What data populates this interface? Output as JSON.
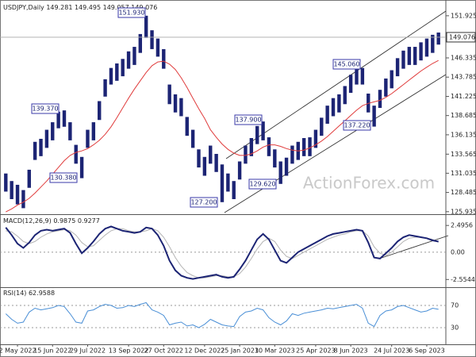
{
  "chart_data": [
    {
      "type": "ohlc",
      "title": "USDJPY,Daily",
      "last_bar": {
        "open": 149.281,
        "high": 149.495,
        "low": 149.057,
        "close": 149.076
      },
      "categories": [
        null,
        null,
        "2 May 2022",
        null,
        null,
        null,
        null,
        null,
        "15 Jun 2022",
        null,
        null,
        null,
        null,
        null,
        "29 Jul 2022",
        null,
        null,
        null,
        null,
        null,
        null,
        "13 Sep 2022",
        null,
        null,
        null,
        null,
        null,
        "27 Oct 2022",
        null,
        null,
        null,
        null,
        null,
        null,
        "12 Dec 2022",
        null,
        null,
        null,
        null,
        null,
        "25 Jan 2023",
        null,
        null,
        null,
        null,
        null,
        "10 Mar 2023",
        null,
        null,
        null,
        null,
        null,
        null,
        "25 Apr 2023",
        null,
        null,
        null,
        null,
        null,
        "8 Jun 2023",
        null,
        null,
        null,
        null,
        null,
        null,
        "24 Jul 2023",
        null,
        null,
        null,
        null,
        null,
        "6 Sep 2023",
        null,
        null
      ],
      "high": [
        131.0,
        130.0,
        129.5,
        128.8,
        131.5,
        135.2,
        135.6,
        136.8,
        137.8,
        139.2,
        139.37,
        137.8,
        134.8,
        133.2,
        136.8,
        137.8,
        140.6,
        143.5,
        145.0,
        145.6,
        146.2,
        147.2,
        147.8,
        149.5,
        151.93,
        150.0,
        148.9,
        147.5,
        142.8,
        141.5,
        141.0,
        138.5,
        136.8,
        134.2,
        133.2,
        134.7,
        133.6,
        132.2,
        131.0,
        130.0,
        132.6,
        134.7,
        135.7,
        137.3,
        137.9,
        135.8,
        134.2,
        132.6,
        133.1,
        134.7,
        135.2,
        135.7,
        135.8,
        136.8,
        138.4,
        140.0,
        141.0,
        141.5,
        142.6,
        144.1,
        145.06,
        145.0,
        141.6,
        140.0,
        142.1,
        143.6,
        144.7,
        146.3,
        147.3,
        147.8,
        147.8,
        148.4,
        148.9,
        149.4,
        149.7
      ],
      "low": [
        128.6,
        127.6,
        126.9,
        126.4,
        129.1,
        132.8,
        133.3,
        134.4,
        135.4,
        137.0,
        137.2,
        135.4,
        132.3,
        130.38,
        134.4,
        135.4,
        138.1,
        141.2,
        142.8,
        143.3,
        143.9,
        144.9,
        145.4,
        147.0,
        149.0,
        147.5,
        146.5,
        144.9,
        140.2,
        139.1,
        138.6,
        136.0,
        134.4,
        131.8,
        130.7,
        132.3,
        131.2,
        127.2,
        128.6,
        127.6,
        130.2,
        132.3,
        133.3,
        134.9,
        135.4,
        133.3,
        131.8,
        129.62,
        130.7,
        132.3,
        132.8,
        133.3,
        133.3,
        134.4,
        136.0,
        137.6,
        138.6,
        139.1,
        140.2,
        141.7,
        142.8,
        142.8,
        139.1,
        137.22,
        139.7,
        141.2,
        142.3,
        143.9,
        144.9,
        145.4,
        145.4,
        146.0,
        146.5,
        147.0,
        148.1
      ],
      "color": "#1c2474",
      "ma": {
        "color": "#e03c3c",
        "values": [
          125.9,
          126.3,
          126.8,
          127.2,
          127.7,
          128.4,
          129.2,
          130.0,
          130.9,
          131.8,
          132.7,
          133.4,
          133.8,
          134.0,
          134.3,
          134.8,
          135.4,
          136.2,
          137.2,
          138.4,
          139.7,
          141.0,
          142.2,
          143.3,
          144.4,
          145.3,
          145.8,
          145.9,
          145.5,
          144.8,
          143.7,
          142.4,
          141.0,
          139.6,
          138.3,
          136.8,
          135.8,
          134.9,
          134.2,
          133.7,
          133.4,
          133.4,
          133.6,
          134.0,
          134.5,
          134.8,
          134.8,
          134.6,
          134.3,
          134.1,
          134.0,
          134.1,
          134.4,
          134.8,
          135.3,
          135.9,
          136.6,
          137.3,
          138.0,
          138.7,
          139.4,
          140.0,
          140.3,
          140.5,
          140.7,
          141.1,
          141.6,
          142.2,
          142.8,
          143.4,
          144.0,
          144.6,
          145.1,
          145.6,
          146.0
        ]
      },
      "ylim": [
        125.6,
        153.7
      ],
      "yticks": [
        125.935,
        128.485,
        131.035,
        133.565,
        136.135,
        138.685,
        141.225,
        143.785,
        146.335,
        151.925
      ],
      "annotations": [
        "151.930",
        "139.370",
        "130.380",
        "127.200",
        "137.900",
        "129.620",
        "145.060",
        "137.220"
      ],
      "watermark": "ActionForex.com"
    },
    {
      "type": "macd",
      "title": "MACD(12,26,9)",
      "macd": {
        "color": "#1c2474",
        "values": [
          2.3,
          1.6,
          0.8,
          0.4,
          0.9,
          1.6,
          2.0,
          2.1,
          2.0,
          2.1,
          2.2,
          1.8,
          0.8,
          -0.1,
          0.4,
          1.0,
          1.7,
          2.2,
          2.4,
          2.2,
          2.0,
          1.9,
          1.8,
          1.9,
          2.3,
          2.2,
          1.6,
          0.6,
          -0.8,
          -1.7,
          -2.2,
          -2.4,
          -2.5,
          -2.4,
          -2.3,
          -2.2,
          -2.1,
          -2.3,
          -2.4,
          -2.3,
          -1.6,
          -0.8,
          0.2,
          1.2,
          1.7,
          1.2,
          0.2,
          -0.8,
          -1.0,
          -0.5,
          0.0,
          0.3,
          0.6,
          0.9,
          1.2,
          1.5,
          1.7,
          1.8,
          1.9,
          2.0,
          2.1,
          2.0,
          0.9,
          -0.5,
          -0.6,
          -0.1,
          0.4,
          1.0,
          1.4,
          1.6,
          1.5,
          1.4,
          1.3,
          1.1,
          0.9875
        ]
      },
      "signal": {
        "color": "#b4b4b4",
        "values": [
          2.0,
          1.9,
          1.5,
          1.0,
          0.8,
          1.0,
          1.4,
          1.7,
          1.9,
          2.0,
          2.1,
          2.0,
          1.6,
          0.9,
          0.5,
          0.6,
          1.1,
          1.6,
          2.0,
          2.2,
          2.2,
          2.0,
          1.9,
          1.9,
          2.0,
          2.2,
          2.0,
          1.4,
          0.5,
          -0.5,
          -1.3,
          -1.9,
          -2.2,
          -2.4,
          -2.4,
          -2.3,
          -2.2,
          -2.2,
          -2.3,
          -2.3,
          -2.0,
          -1.4,
          -0.6,
          0.3,
          1.0,
          1.3,
          1.0,
          0.2,
          -0.4,
          -0.6,
          -0.3,
          0.0,
          0.3,
          0.6,
          0.9,
          1.2,
          1.4,
          1.6,
          1.7,
          1.9,
          2.0,
          2.0,
          1.5,
          0.5,
          -0.1,
          -0.3,
          0.0,
          0.5,
          1.0,
          1.3,
          1.4,
          1.4,
          1.3,
          1.2,
          0.9277
        ]
      },
      "ylim": [
        -3.2,
        3.4
      ],
      "yticks": [
        -2.5544,
        {
          "value": 0,
          "label": "0.00"
        },
        2.4956
      ]
    },
    {
      "type": "rsi",
      "title": "RSI(14)",
      "color": "#4a8fd6",
      "values": [
        55,
        45,
        38,
        40,
        58,
        65,
        62,
        64,
        66,
        70,
        68,
        55,
        40,
        38,
        60,
        62,
        68,
        72,
        70,
        65,
        66,
        70,
        68,
        72,
        75,
        62,
        58,
        52,
        35,
        38,
        40,
        33,
        35,
        30,
        36,
        45,
        40,
        35,
        33,
        32,
        50,
        58,
        60,
        65,
        62,
        48,
        40,
        35,
        42,
        55,
        52,
        56,
        58,
        60,
        62,
        65,
        64,
        66,
        68,
        70,
        72,
        65,
        38,
        32,
        52,
        60,
        62,
        68,
        70,
        66,
        62,
        58,
        60,
        65,
        62.9588
      ],
      "ylim": [
        0,
        100
      ],
      "yticks": [
        30,
        70
      ]
    }
  ]
}
